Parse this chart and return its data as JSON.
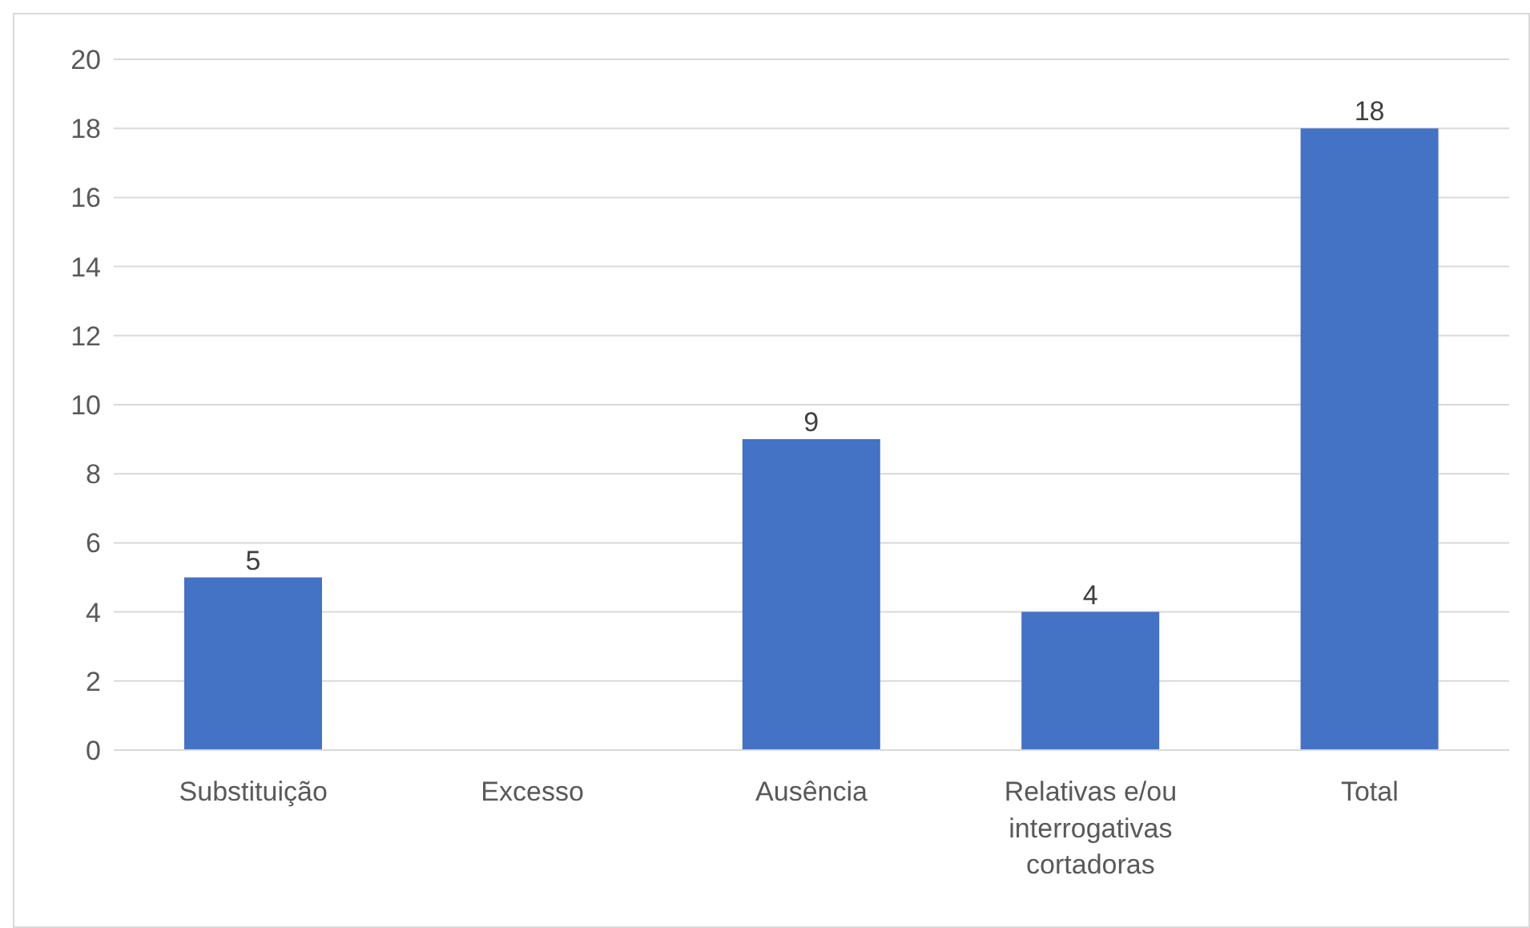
{
  "chart_data": {
    "type": "bar",
    "categories": [
      "Substituição",
      "Excesso",
      "Ausência",
      "Relativas e/ou interrogativas cortadoras",
      "Total"
    ],
    "values": [
      5,
      0,
      9,
      4,
      18
    ],
    "value_labels": [
      "5",
      null,
      "9",
      "4",
      "18"
    ],
    "color": "#4472c4",
    "ylim": [
      0,
      20
    ],
    "yticks": [
      0,
      2,
      4,
      6,
      8,
      10,
      12,
      14,
      16,
      18,
      20
    ],
    "grid": "y",
    "legend": false
  }
}
